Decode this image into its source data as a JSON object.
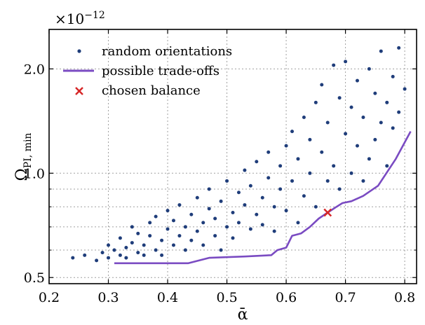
{
  "chart_data": {
    "type": "scatter",
    "xlabel": "ᾱ",
    "ylabel_main": "Ω",
    "ylabel_sub": "PI, min",
    "scale_prefix": "×10",
    "scale_exponent": "−12",
    "xlim": [
      0.2,
      0.82
    ],
    "ylim": [
      0.48,
      2.6
    ],
    "yscale": "log",
    "grid": true,
    "legend_position": "top-left",
    "x_ticks": [
      {
        "value": 0.2,
        "label": "0.2"
      },
      {
        "value": 0.3,
        "label": "0.3"
      },
      {
        "value": 0.4,
        "label": "0.4"
      },
      {
        "value": 0.5,
        "label": "0.5"
      },
      {
        "value": 0.6,
        "label": "0.6"
      },
      {
        "value": 0.7,
        "label": "0.7"
      },
      {
        "value": 0.8,
        "label": "0.8"
      }
    ],
    "y_ticks": [
      {
        "value": 0.5,
        "label": "0.5"
      },
      {
        "value": 1.0,
        "label": "1.0"
      },
      {
        "value": 2.0,
        "label": "2.0"
      }
    ],
    "y_minor_ticks": [
      0.6,
      0.7,
      0.8,
      0.9
    ],
    "legend": [
      {
        "name": "random orientations",
        "kind": "dots",
        "color": "#1f3d7a"
      },
      {
        "name": "possible trade-offs",
        "kind": "line",
        "color": "#7a4bc2"
      },
      {
        "name": "chosen balance",
        "kind": "cross",
        "color": "#d62728"
      }
    ],
    "series": [
      {
        "name": "random orientations",
        "color": "#1f3d7a",
        "points": [
          [
            0.24,
            0.57
          ],
          [
            0.26,
            0.58
          ],
          [
            0.28,
            0.56
          ],
          [
            0.29,
            0.59
          ],
          [
            0.3,
            0.57
          ],
          [
            0.3,
            0.62
          ],
          [
            0.31,
            0.6
          ],
          [
            0.32,
            0.58
          ],
          [
            0.32,
            0.65
          ],
          [
            0.33,
            0.61
          ],
          [
            0.33,
            0.57
          ],
          [
            0.34,
            0.63
          ],
          [
            0.34,
            0.7
          ],
          [
            0.35,
            0.59
          ],
          [
            0.35,
            0.67
          ],
          [
            0.36,
            0.62
          ],
          [
            0.36,
            0.58
          ],
          [
            0.37,
            0.72
          ],
          [
            0.37,
            0.66
          ],
          [
            0.38,
            0.6
          ],
          [
            0.38,
            0.75
          ],
          [
            0.39,
            0.64
          ],
          [
            0.39,
            0.58
          ],
          [
            0.4,
            0.69
          ],
          [
            0.4,
            0.78
          ],
          [
            0.41,
            0.62
          ],
          [
            0.41,
            0.73
          ],
          [
            0.42,
            0.66
          ],
          [
            0.42,
            0.81
          ],
          [
            0.43,
            0.6
          ],
          [
            0.43,
            0.7
          ],
          [
            0.44,
            0.76
          ],
          [
            0.44,
            0.64
          ],
          [
            0.45,
            0.85
          ],
          [
            0.45,
            0.68
          ],
          [
            0.46,
            0.72
          ],
          [
            0.46,
            0.62
          ],
          [
            0.47,
            0.79
          ],
          [
            0.47,
            0.9
          ],
          [
            0.48,
            0.66
          ],
          [
            0.48,
            0.74
          ],
          [
            0.49,
            0.83
          ],
          [
            0.49,
            0.6
          ],
          [
            0.5,
            0.7
          ],
          [
            0.5,
            0.95
          ],
          [
            0.51,
            0.77
          ],
          [
            0.51,
            0.65
          ],
          [
            0.52,
            0.88
          ],
          [
            0.52,
            0.72
          ],
          [
            0.53,
            0.81
          ],
          [
            0.53,
            1.02
          ],
          [
            0.54,
            0.69
          ],
          [
            0.54,
            0.92
          ],
          [
            0.55,
            0.76
          ],
          [
            0.55,
            1.08
          ],
          [
            0.56,
            0.85
          ],
          [
            0.56,
            0.71
          ],
          [
            0.57,
            0.97
          ],
          [
            0.57,
            1.15
          ],
          [
            0.58,
            0.8
          ],
          [
            0.58,
            0.68
          ],
          [
            0.59,
            1.05
          ],
          [
            0.59,
            0.9
          ],
          [
            0.6,
            1.2
          ],
          [
            0.6,
            0.78
          ],
          [
            0.61,
            0.95
          ],
          [
            0.61,
            1.32
          ],
          [
            0.62,
            0.72
          ],
          [
            0.62,
            1.1
          ],
          [
            0.63,
            1.45
          ],
          [
            0.63,
            0.86
          ],
          [
            0.64,
            1.25
          ],
          [
            0.64,
            1.0
          ],
          [
            0.65,
            1.6
          ],
          [
            0.65,
            0.8
          ],
          [
            0.66,
            1.15
          ],
          [
            0.66,
            1.8
          ],
          [
            0.67,
            0.95
          ],
          [
            0.67,
            1.4
          ],
          [
            0.68,
            2.05
          ],
          [
            0.68,
            1.05
          ],
          [
            0.69,
            1.65
          ],
          [
            0.69,
            0.9
          ],
          [
            0.7,
            1.3
          ],
          [
            0.7,
            2.1
          ],
          [
            0.71,
            1.0
          ],
          [
            0.71,
            1.55
          ],
          [
            0.72,
            1.85
          ],
          [
            0.72,
            1.2
          ],
          [
            0.73,
            0.95
          ],
          [
            0.73,
            1.45
          ],
          [
            0.74,
            2.0
          ],
          [
            0.74,
            1.1
          ],
          [
            0.75,
            1.7
          ],
          [
            0.75,
            1.25
          ],
          [
            0.76,
            2.25
          ],
          [
            0.76,
            1.4
          ],
          [
            0.77,
            1.05
          ],
          [
            0.77,
            1.6
          ],
          [
            0.78,
            1.9
          ],
          [
            0.78,
            1.35
          ],
          [
            0.79,
            2.3
          ],
          [
            0.79,
            1.5
          ],
          [
            0.8,
            1.75
          ]
        ]
      },
      {
        "name": "possible trade-offs",
        "color": "#7a4bc2",
        "points": [
          [
            0.31,
            0.55
          ],
          [
            0.435,
            0.55
          ],
          [
            0.47,
            0.57
          ],
          [
            0.53,
            0.575
          ],
          [
            0.575,
            0.58
          ],
          [
            0.585,
            0.6
          ],
          [
            0.6,
            0.61
          ],
          [
            0.61,
            0.66
          ],
          [
            0.625,
            0.67
          ],
          [
            0.64,
            0.7
          ],
          [
            0.655,
            0.74
          ],
          [
            0.67,
            0.77
          ],
          [
            0.685,
            0.8
          ],
          [
            0.695,
            0.82
          ],
          [
            0.71,
            0.83
          ],
          [
            0.73,
            0.86
          ],
          [
            0.755,
            0.92
          ],
          [
            0.785,
            1.1
          ],
          [
            0.81,
            1.32
          ]
        ]
      },
      {
        "name": "chosen balance",
        "color": "#d62728",
        "points": [
          [
            0.67,
            0.77
          ]
        ]
      }
    ]
  }
}
